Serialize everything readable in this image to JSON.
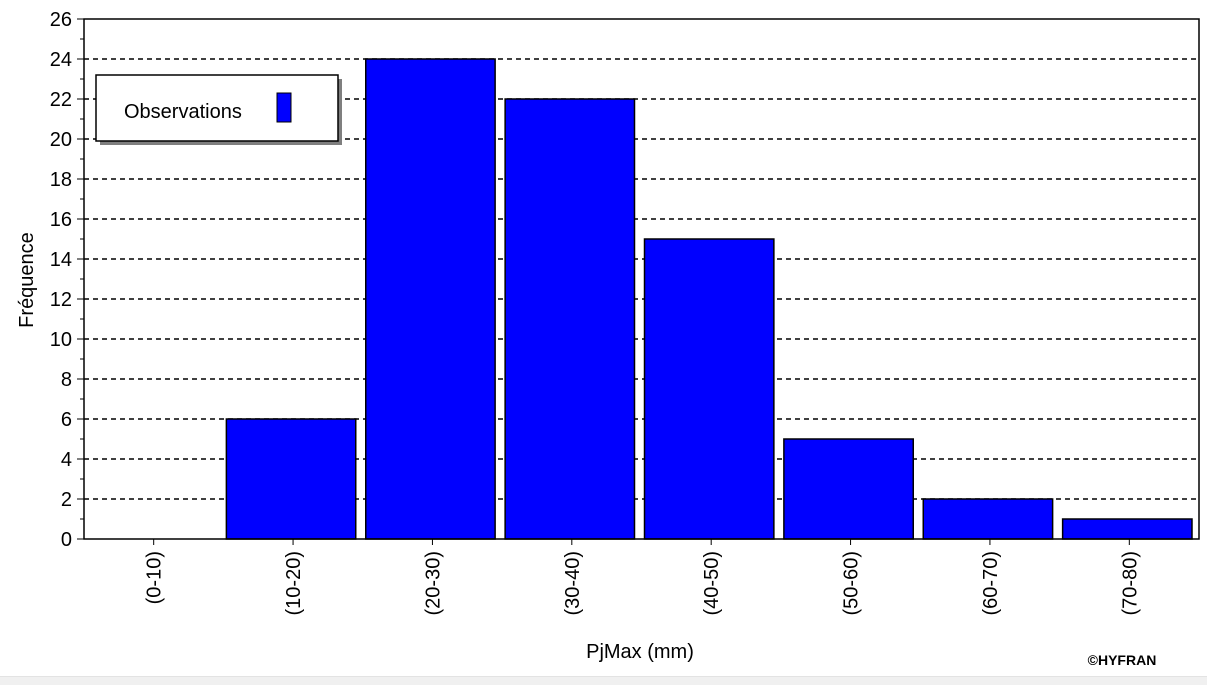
{
  "chart_data": {
    "type": "bar",
    "categories": [
      "(0-10)",
      "(10-20)",
      "(20-30)",
      "(30-40)",
      "(40-50)",
      "(50-60)",
      "(60-70)",
      "(70-80)"
    ],
    "series": [
      {
        "name": "Observations",
        "values": [
          0,
          6,
          24,
          22,
          15,
          5,
          2,
          1
        ]
      }
    ],
    "xlabel": "PjMax (mm)",
    "ylabel": "Fréquence",
    "ylim": [
      0,
      26
    ],
    "yticks": [
      0,
      2,
      4,
      6,
      8,
      10,
      12,
      14,
      16,
      18,
      20,
      22,
      24,
      26
    ],
    "grid": "horizontal-dashed",
    "legend_position": "top-left",
    "colors": {
      "bar": "#0000ff",
      "grid": "#000000",
      "background": "#ffffff"
    }
  },
  "credit": "©HYFRAN"
}
